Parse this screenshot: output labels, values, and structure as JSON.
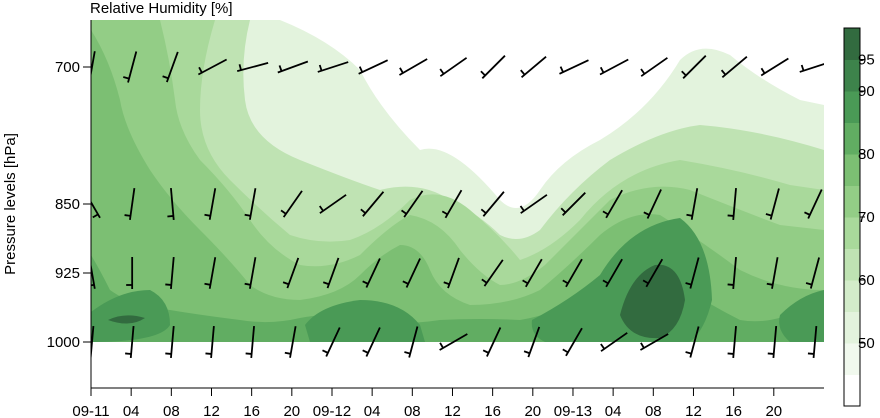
{
  "chart_data": {
    "type": "heatmap",
    "title": "Relative Humidity [%]",
    "ylabel": "Pressure levels [hPa]",
    "xlabel": "",
    "x_tick_labels": [
      "09-11",
      "04",
      "08",
      "12",
      "16",
      "20",
      "09-12",
      "04",
      "08",
      "12",
      "16",
      "20",
      "09-13",
      "04",
      "08",
      "12",
      "16",
      "20"
    ],
    "x_tick_hours": [
      0,
      4,
      8,
      12,
      16,
      20,
      24,
      28,
      32,
      36,
      40,
      44,
      48,
      52,
      56,
      60,
      64,
      68
    ],
    "xlim_hours": [
      0,
      73
    ],
    "y_tick_labels": [
      "700",
      "850",
      "925",
      "1000"
    ],
    "y_tick_values": [
      700,
      850,
      925,
      1000
    ],
    "ylim_hpa": [
      660,
      1050
    ],
    "colorbar": {
      "levels": [
        40,
        45,
        50,
        55,
        60,
        65,
        70,
        75,
        80,
        85,
        90,
        95,
        100
      ],
      "tick_labels": [
        "50",
        "60",
        "70",
        "80",
        "90",
        "95"
      ],
      "tick_values": [
        50,
        60,
        70,
        80,
        90,
        95
      ],
      "colors": [
        "#ffffff",
        "#f1f9ee",
        "#e3f3dd",
        "#d3ecca",
        "#bfe3b3",
        "#a9d99b",
        "#93cd86",
        "#7cbf73",
        "#61ad62",
        "#4a9a56",
        "#3d834b",
        "#326b3f"
      ]
    },
    "legend_placement": "right",
    "wind_barbs_levels": [
      700,
      850,
      925,
      1000
    ],
    "wind_barbs_hours": [
      0,
      4,
      8,
      12,
      16,
      20,
      24,
      28,
      32,
      36,
      40,
      44,
      48,
      52,
      56,
      60,
      64,
      68,
      72
    ]
  }
}
